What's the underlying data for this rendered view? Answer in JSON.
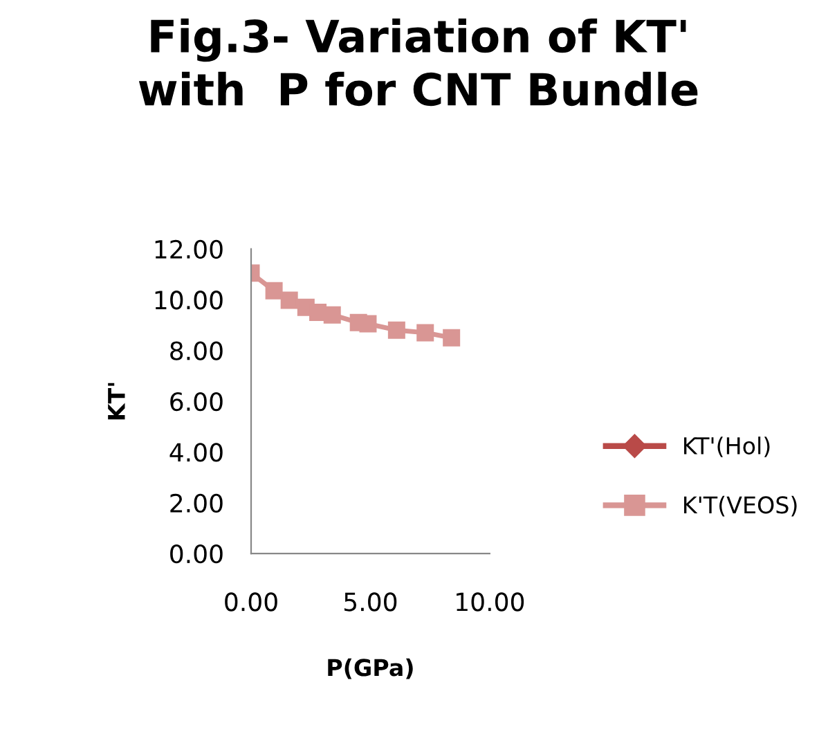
{
  "chart_data": {
    "type": "line",
    "title": "Fig.3- Variation of KT'\nwith  P for CNT Bundle",
    "xlabel": "P(GPa)",
    "ylabel": "KT'",
    "series": [
      {
        "name": "KT'(Hol)",
        "color": "#b94a48",
        "marker": "diamond"
      },
      {
        "name": "K'T(VEOS)",
        "color": "#d99694",
        "marker": "square",
        "x": [
          0,
          0.96,
          1.6,
          2.3,
          2.8,
          3.4,
          4.5,
          4.9,
          6.1,
          7.3,
          8.4
        ],
        "values": [
          11.05,
          10.35,
          9.98,
          9.7,
          9.5,
          9.4,
          9.1,
          9.05,
          8.8,
          8.7,
          8.5
        ]
      }
    ],
    "xlim": [
      0,
      10
    ],
    "xticks": [
      {
        "value": 0,
        "label": "0.00"
      },
      {
        "value": 5,
        "label": "5.00"
      },
      {
        "value": 10,
        "label": "10.00"
      }
    ],
    "ylim": [
      0,
      12
    ],
    "yticks": [
      {
        "value": 0,
        "label": "0.00"
      },
      {
        "value": 2,
        "label": "2.00"
      },
      {
        "value": 4,
        "label": "4.00"
      },
      {
        "value": 6,
        "label": "6.00"
      },
      {
        "value": 8,
        "label": "8.00"
      },
      {
        "value": 10,
        "label": "10.00"
      },
      {
        "value": 12,
        "label": "12.00"
      }
    ],
    "legend": "right",
    "grid": false
  }
}
